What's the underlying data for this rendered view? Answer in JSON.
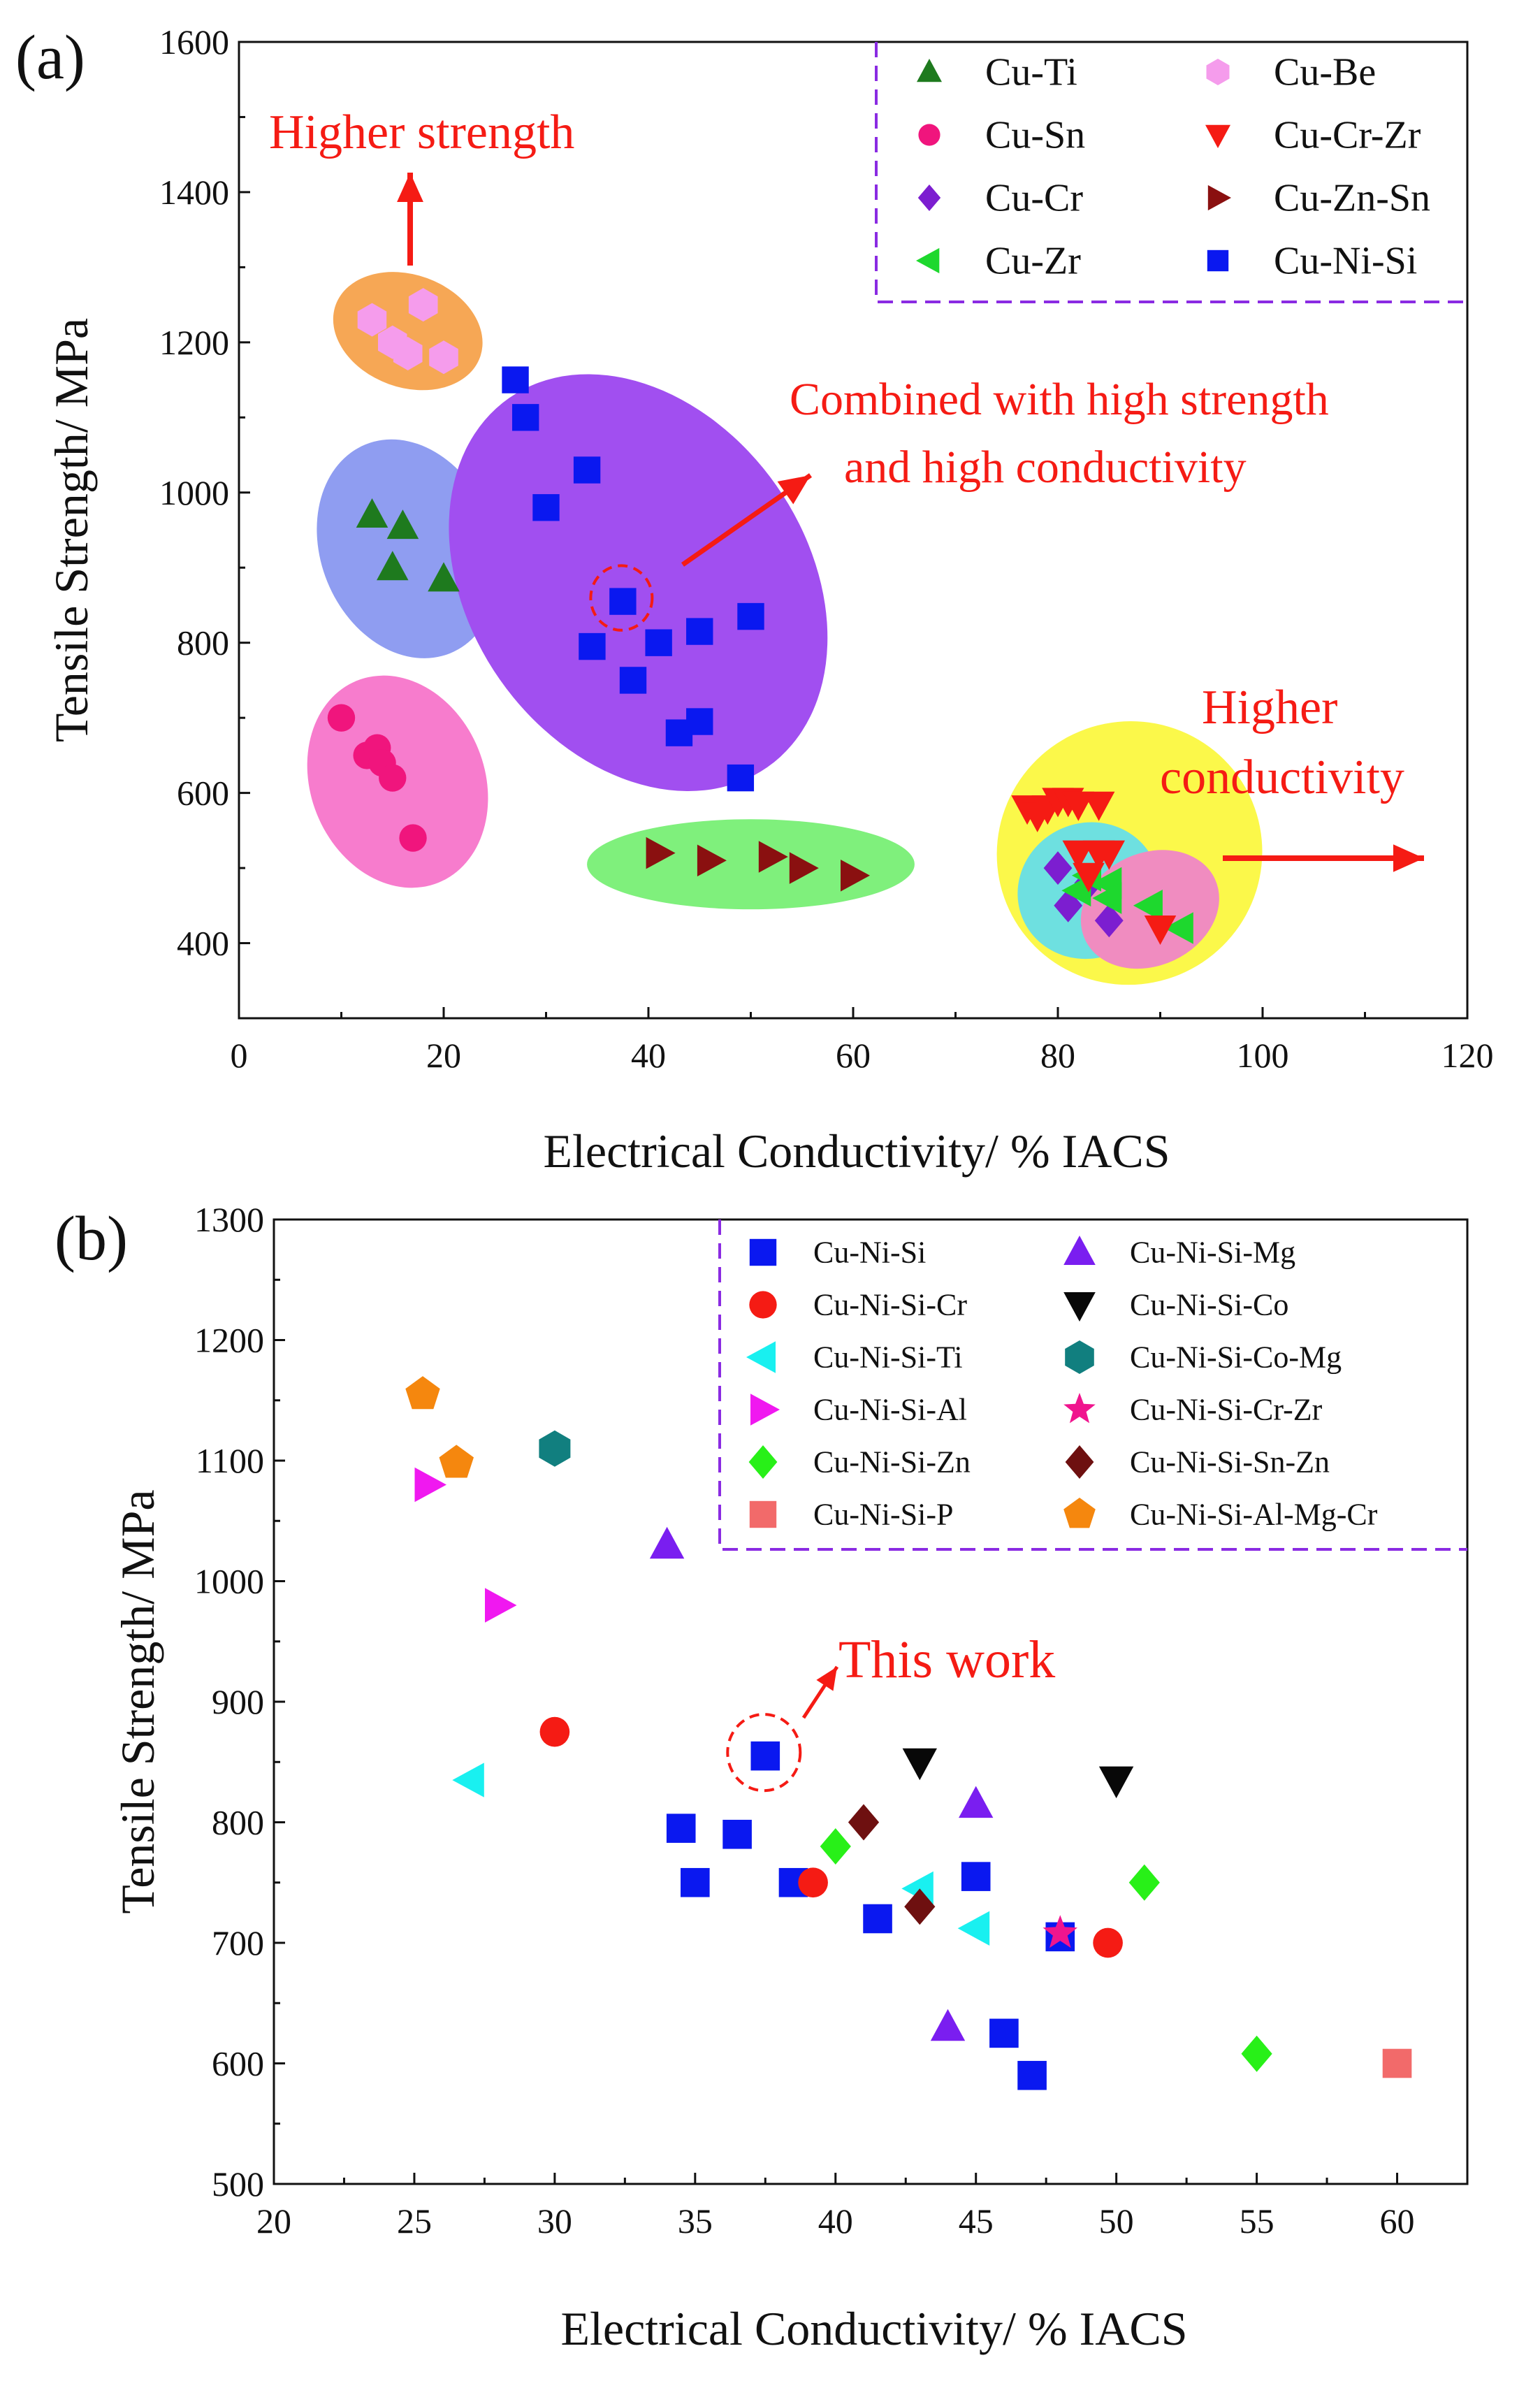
{
  "chart_data": [
    {
      "panel_label": "(a)",
      "type": "scatter",
      "xlabel": "Electrical Conductivity/ % IACS",
      "ylabel": "Tensile Strength/ MPa",
      "xlim": [
        0,
        120
      ],
      "ylim": [
        300,
        1600
      ],
      "xticks": [
        0,
        20,
        40,
        60,
        80,
        100,
        120
      ],
      "yticks": [
        400,
        600,
        800,
        1000,
        1200,
        1400,
        1600
      ],
      "legend_position": "top-right",
      "annotations": {
        "higher_strength": "Higher strength",
        "combined_line1": "Combined with high strength",
        "combined_line2": "and high conductivity",
        "higher_conductivity_line1": "Higher",
        "higher_conductivity_line2": "conductivity"
      },
      "regions": [
        {
          "name": "Cu-Be",
          "color": "#f6a755",
          "cx": 16.5,
          "cy": 1215,
          "rx": 7.5,
          "ry": 75,
          "angle": -20
        },
        {
          "name": "Cu-Ti",
          "color": "#8f9df1",
          "cx": 16.5,
          "cy": 925,
          "rx": 8.5,
          "ry": 150,
          "angle": 22
        },
        {
          "name": "Cu-Sn",
          "color": "#f77ccd",
          "cx": 15.5,
          "cy": 615,
          "rx": 8.5,
          "ry": 145,
          "angle": 22
        },
        {
          "name": "Cu-Ni-Si",
          "color": "#a14ff0",
          "cx": 39,
          "cy": 880,
          "rx": 16.5,
          "ry": 300,
          "angle": 35
        },
        {
          "name": "Cu-Zn-Sn",
          "color": "#7ff07c",
          "cx": 50,
          "cy": 505,
          "rx": 16,
          "ry": 60,
          "angle": 0
        },
        {
          "name": "Cu-Cr-Zr",
          "color": "#fbf84a",
          "cx": 87,
          "cy": 520,
          "rx": 13,
          "ry": 175,
          "angle": 28
        },
        {
          "name": "Cu-Cr",
          "color": "#6ee0e0",
          "cx": 83,
          "cy": 470,
          "rx": 7,
          "ry": 90,
          "angle": 25
        },
        {
          "name": "Cu-Zr",
          "color": "#f08cc0",
          "cx": 89,
          "cy": 445,
          "rx": 7,
          "ry": 75,
          "angle": 25
        }
      ],
      "series": [
        {
          "name": "Cu-Ti",
          "marker": "triangle-up",
          "color": "#1e7a1e",
          "points": [
            [
              13,
              970
            ],
            [
              16,
              955
            ],
            [
              15,
              900
            ],
            [
              20,
              885
            ]
          ]
        },
        {
          "name": "Cu-Sn",
          "marker": "circle",
          "color": "#f0157d",
          "points": [
            [
              10,
              700
            ],
            [
              12.5,
              650
            ],
            [
              13.5,
              660
            ],
            [
              14,
              640
            ],
            [
              15,
              620
            ],
            [
              17,
              540
            ]
          ]
        },
        {
          "name": "Cu-Cr",
          "marker": "diamond",
          "color": "#7c1ed0",
          "points": [
            [
              80,
              500
            ],
            [
              81,
              450
            ],
            [
              83,
              480
            ],
            [
              85,
              430
            ]
          ]
        },
        {
          "name": "Cu-Zr",
          "marker": "triangle-left",
          "color": "#1ed82e",
          "points": [
            [
              82,
              470
            ],
            [
              83,
              490
            ],
            [
              85,
              480
            ],
            [
              85,
              460
            ],
            [
              89,
              450
            ],
            [
              92,
              420
            ]
          ]
        },
        {
          "name": "Cu-Be",
          "marker": "hexagon",
          "color": "#f59cec",
          "points": [
            [
              13,
              1230
            ],
            [
              15,
              1200
            ],
            [
              16.5,
              1185
            ],
            [
              18,
              1250
            ],
            [
              20,
              1180
            ]
          ]
        },
        {
          "name": "Cu-Cr-Zr",
          "marker": "triangle-down",
          "color": "#f51b14",
          "points": [
            [
              77,
              580
            ],
            [
              78,
              570
            ],
            [
              79,
              580
            ],
            [
              80,
              590
            ],
            [
              81,
              590
            ],
            [
              82,
              585
            ],
            [
              84,
              585
            ],
            [
              82,
              520
            ],
            [
              84,
              520
            ],
            [
              85,
              520
            ],
            [
              83,
              490
            ],
            [
              90,
              420
            ]
          ]
        },
        {
          "name": "Cu-Zn-Sn",
          "marker": "triangle-right",
          "color": "#8a1010",
          "points": [
            [
              41,
              520
            ],
            [
              46,
              510
            ],
            [
              52,
              515
            ],
            [
              55,
              500
            ],
            [
              60,
              490
            ]
          ]
        },
        {
          "name": "Cu-Ni-Si",
          "marker": "square",
          "color": "#0a18f0",
          "points": [
            [
              27,
              1150
            ],
            [
              28,
              1100
            ],
            [
              30,
              980
            ],
            [
              34,
              1030
            ],
            [
              34.5,
              795
            ],
            [
              37.5,
              855
            ],
            [
              38.5,
              750
            ],
            [
              41,
              800
            ],
            [
              43,
              680
            ],
            [
              45,
              695
            ],
            [
              45,
              815
            ],
            [
              49,
              620
            ],
            [
              50,
              835
            ]
          ]
        }
      ],
      "highlight_point": [
        37.5,
        855
      ]
    },
    {
      "panel_label": "(b)",
      "type": "scatter",
      "xlabel": "Electrical Conductivity/ % IACS",
      "ylabel": "Tensile Strength/ MPa",
      "xlim": [
        20,
        62.5
      ],
      "ylim": [
        500,
        1300
      ],
      "xticks": [
        20,
        25,
        30,
        35,
        40,
        45,
        50,
        55,
        60
      ],
      "yticks": [
        500,
        600,
        700,
        800,
        900,
        1000,
        1100,
        1200,
        1300
      ],
      "legend_position": "top-right",
      "annotations": {
        "this_work": "This work"
      },
      "series": [
        {
          "name": "Cu-Ni-Si",
          "marker": "square",
          "color": "#0a18f0",
          "points": [
            [
              34.5,
              795
            ],
            [
              35,
              750
            ],
            [
              36.5,
              790
            ],
            [
              37.5,
              855
            ],
            [
              38.5,
              750
            ],
            [
              41.5,
              720
            ],
            [
              45,
              755
            ],
            [
              46,
              625
            ],
            [
              47,
              590
            ],
            [
              48,
              705
            ]
          ]
        },
        {
          "name": "Cu-Ni-Si-Cr",
          "marker": "circle",
          "color": "#f51b14",
          "points": [
            [
              30,
              875
            ],
            [
              39.2,
              750
            ],
            [
              49.7,
              700
            ]
          ]
        },
        {
          "name": "Cu-Ni-Si-Ti",
          "marker": "triangle-left",
          "color": "#19f0f0",
          "points": [
            [
              27,
              835
            ],
            [
              43,
              745
            ],
            [
              45,
              712
            ]
          ]
        },
        {
          "name": "Cu-Ni-Si-Al",
          "marker": "triangle-right",
          "color": "#f018f0",
          "points": [
            [
              25.5,
              1080
            ],
            [
              28,
              980
            ]
          ]
        },
        {
          "name": "Cu-Ni-Si-Zn",
          "marker": "diamond",
          "color": "#28f018",
          "points": [
            [
              40,
              780
            ],
            [
              51,
              750
            ],
            [
              55,
              608
            ]
          ]
        },
        {
          "name": "Cu-Ni-Si-P",
          "marker": "square",
          "color": "#f26a6a",
          "points": [
            [
              60,
              600
            ]
          ]
        },
        {
          "name": "Cu-Ni-Si-Mg",
          "marker": "triangle-up",
          "color": "#7a1ef0",
          "points": [
            [
              34,
              1030
            ],
            [
              44,
              630
            ],
            [
              45,
              815
            ]
          ]
        },
        {
          "name": "Cu-Ni-Si-Co",
          "marker": "triangle-down",
          "color": "#080808",
          "points": [
            [
              43,
              850
            ],
            [
              50,
              835
            ]
          ]
        },
        {
          "name": "Cu-Ni-Si-Co-Mg",
          "marker": "hexagon",
          "color": "#117f7f",
          "points": [
            [
              30,
              1110
            ]
          ]
        },
        {
          "name": "Cu-Ni-Si-Cr-Zr",
          "marker": "star",
          "color": "#f0158e",
          "points": [
            [
              48,
              708
            ]
          ]
        },
        {
          "name": "Cu-Ni-Si-Sn-Zn",
          "marker": "diamond",
          "color": "#6e1010",
          "points": [
            [
              41,
              800
            ],
            [
              43,
              730
            ]
          ]
        },
        {
          "name": "Cu-Ni-Si-Al-Mg-Cr",
          "marker": "pentagon",
          "color": "#f5870e",
          "points": [
            [
              25.3,
              1155
            ],
            [
              26.5,
              1098
            ]
          ]
        }
      ],
      "highlight_point": [
        37.5,
        855
      ]
    }
  ]
}
